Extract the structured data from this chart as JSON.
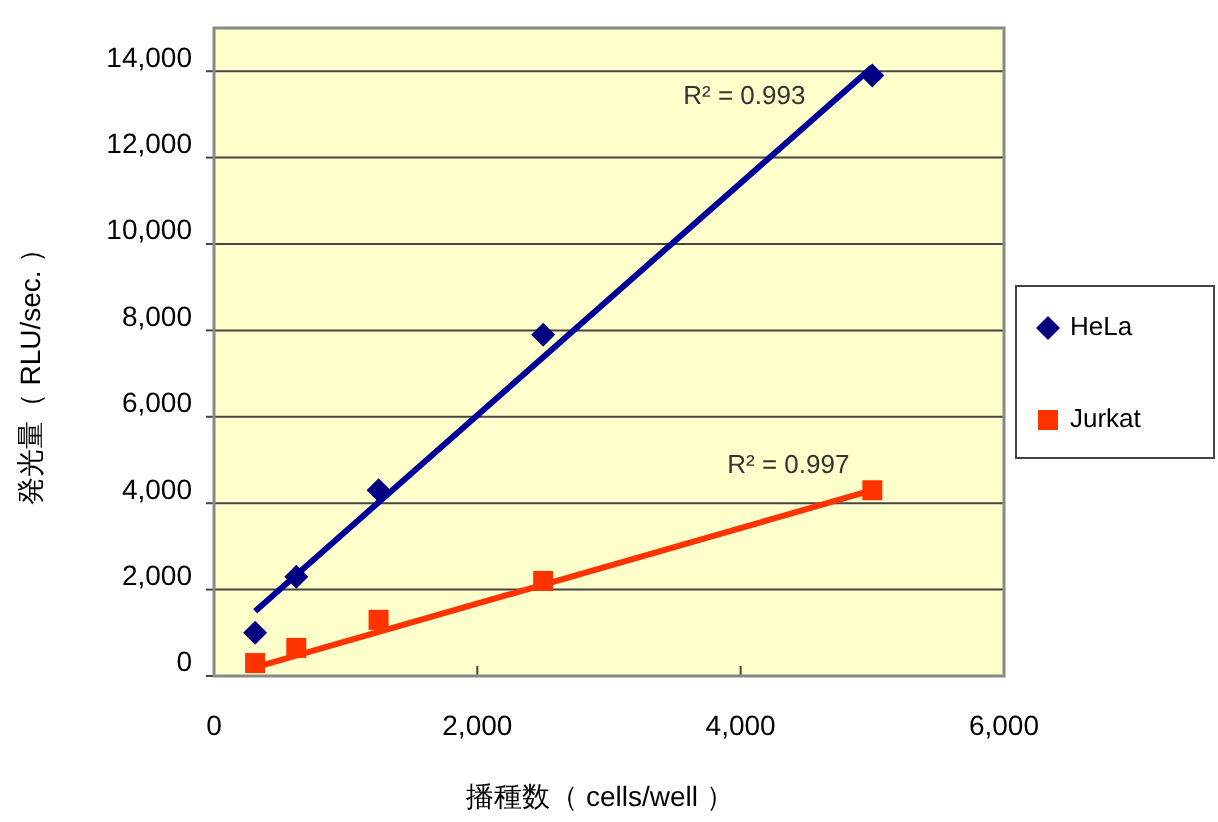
{
  "chart_data": {
    "type": "scatter",
    "xlabel": "播種数（ cells/well ）",
    "ylabel": "発光量（ RLU/sec. ）",
    "xlim": [
      0,
      6000
    ],
    "xticks": [
      {
        "value": 0,
        "label": "0"
      },
      {
        "value": 2000,
        "label": "2,000"
      },
      {
        "value": 4000,
        "label": "4,000"
      },
      {
        "value": 6000,
        "label": "6,000"
      }
    ],
    "ylim": [
      0,
      15000
    ],
    "yticks": [
      {
        "value": 0,
        "label": "0"
      },
      {
        "value": 2000,
        "label": "2,000"
      },
      {
        "value": 4000,
        "label": "4,000"
      },
      {
        "value": 6000,
        "label": "6,000"
      },
      {
        "value": 8000,
        "label": "8,000"
      },
      {
        "value": 10000,
        "label": "10,000"
      },
      {
        "value": 12000,
        "label": "12,000"
      },
      {
        "value": 14000,
        "label": "14,000"
      }
    ],
    "grid": "y",
    "legend": "right",
    "series": [
      {
        "name": "HeLa",
        "marker": "diamond",
        "color": "#000080",
        "x": [
          312.5,
          625,
          1250,
          2500,
          5000
        ],
        "values": [
          1000,
          2300,
          4300,
          7900,
          13900
        ]
      },
      {
        "name": "Jurkat",
        "marker": "square",
        "color": "#ff3300",
        "x": [
          312.5,
          625,
          1250,
          2500,
          5000
        ],
        "values": [
          300,
          650,
          1300,
          2200,
          4300
        ]
      },
      {
        "type": "line",
        "color": "#000099",
        "x": [
          312.5,
          5000
        ],
        "values": [
          1500,
          14100
        ]
      },
      {
        "type": "line",
        "color": "#ff3300",
        "x": [
          312.5,
          5000
        ],
        "values": [
          200,
          4300
        ]
      }
    ],
    "annotations": [
      "R² = 0.993",
      "R² = 0.997"
    ]
  }
}
